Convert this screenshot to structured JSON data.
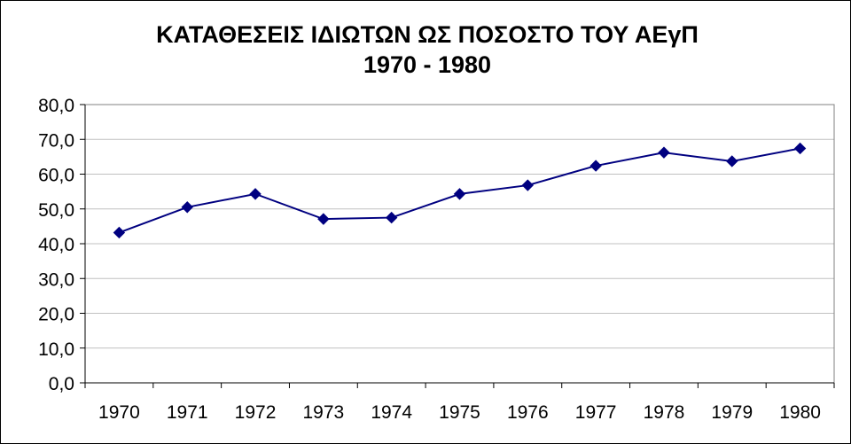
{
  "chart_data": {
    "type": "line",
    "title": "ΚΑΤΑΘΕΣΕΙΣ ΙΔΙΩΤΩΝ ΩΣ ΠΟΣΟΣΤΟ ΤΟΥ ΑΕγΠ",
    "subtitle": "1970 - 1980",
    "xlabel": "",
    "ylabel": "",
    "categories": [
      "1970",
      "1971",
      "1972",
      "1973",
      "1974",
      "1975",
      "1976",
      "1977",
      "1978",
      "1979",
      "1980"
    ],
    "series": [
      {
        "values": [
          43.2,
          50.5,
          54.3,
          47.1,
          47.5,
          54.3,
          56.8,
          62.4,
          66.2,
          63.7,
          67.4
        ],
        "color": "#000080",
        "marker": "diamond"
      }
    ],
    "ylim": [
      0,
      80
    ],
    "yticks": [
      "0,0",
      "10,0",
      "20,0",
      "30,0",
      "40,0",
      "50,0",
      "60,0",
      "70,0",
      "80,0"
    ],
    "grid": true,
    "legend": "none"
  }
}
